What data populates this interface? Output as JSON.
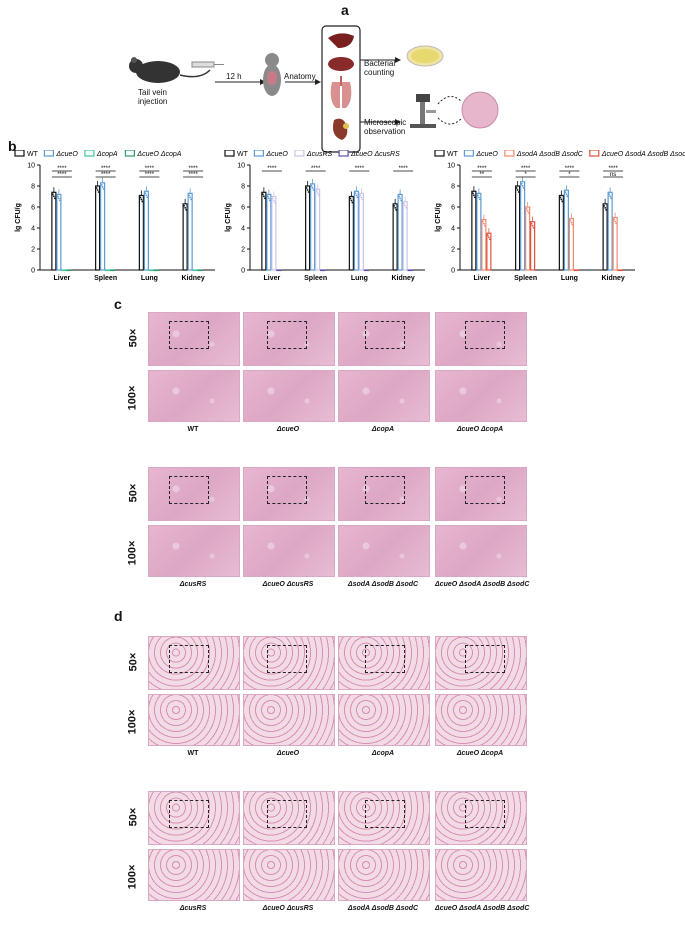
{
  "panel_labels": {
    "a": "a",
    "b": "b",
    "c": "c",
    "d": "d"
  },
  "schematic": {
    "tail_vein": "Tail vein\ninjection",
    "time": "12 h",
    "anatomy": "Anatomy",
    "bacterial": "Bacterial\ncounting",
    "microscopic": "Microscopic\nobservation"
  },
  "chart_data": [
    {
      "type": "bar",
      "ylabel": "lg CFU/g",
      "ylim": [
        0,
        10
      ],
      "yticks": [
        "0",
        "2",
        "4",
        "6",
        "8",
        "10"
      ],
      "categories": [
        "Liver",
        "Spleen",
        "Lung",
        "Kidney"
      ],
      "series": [
        {
          "name": "WT",
          "values": [
            7.4,
            8.0,
            7.1,
            6.3
          ],
          "color": "#111111"
        },
        {
          "name": "ΔcueO",
          "values": [
            7.2,
            8.3,
            7.5,
            7.3
          ],
          "color": "#5b9bd5"
        },
        {
          "name": "ΔcopA",
          "values": [
            0,
            0,
            0,
            0
          ],
          "color": "#3ec6a0"
        },
        {
          "name": "ΔcueO ΔcopA",
          "values": [
            0,
            0,
            0,
            0
          ],
          "color": "#2e9c6a"
        }
      ],
      "significance": [
        [
          "****",
          "****"
        ],
        [
          "****",
          "****"
        ],
        [
          "****",
          "****"
        ],
        [
          "****",
          "****"
        ]
      ]
    },
    {
      "type": "bar",
      "ylabel": "lg CFU/g",
      "ylim": [
        0,
        10
      ],
      "yticks": [
        "0",
        "2",
        "4",
        "6",
        "8",
        "10"
      ],
      "categories": [
        "Liver",
        "Spleen",
        "Lung",
        "Kidney"
      ],
      "series": [
        {
          "name": "WT",
          "values": [
            7.4,
            8.0,
            7.0,
            6.3
          ],
          "color": "#111111"
        },
        {
          "name": "ΔcueO",
          "values": [
            7.2,
            8.2,
            7.5,
            7.2
          ],
          "color": "#5b9bd5"
        },
        {
          "name": "ΔcusRS",
          "values": [
            7.0,
            7.7,
            7.3,
            6.5
          ],
          "color": "#c9c6e6"
        },
        {
          "name": "ΔcueO ΔcusRS",
          "values": [
            0,
            0,
            0,
            0
          ],
          "color": "#5b4fa8"
        }
      ],
      "significance": [
        [
          "****"
        ],
        [
          "****"
        ],
        [
          "****"
        ],
        [
          "****"
        ]
      ]
    },
    {
      "type": "bar",
      "ylabel": "lg CFU/g",
      "ylim": [
        0,
        10
      ],
      "yticks": [
        "0",
        "2",
        "4",
        "6",
        "8",
        "10"
      ],
      "categories": [
        "Liver",
        "Spleen",
        "Lung",
        "Kidney"
      ],
      "series": [
        {
          "name": "WT",
          "values": [
            7.5,
            8.0,
            7.1,
            6.3
          ],
          "color": "#111111"
        },
        {
          "name": "ΔcueO",
          "values": [
            7.3,
            8.4,
            7.6,
            7.4
          ],
          "color": "#5b9bd5"
        },
        {
          "name": "ΔsodA ΔsodB ΔsodC",
          "values": [
            4.8,
            6.0,
            4.9,
            5.0
          ],
          "color": "#f08a6c"
        },
        {
          "name": "ΔcueO ΔsodA ΔsodB ΔsodC",
          "values": [
            3.5,
            4.6,
            0,
            0
          ],
          "color": "#e0503a"
        }
      ],
      "significance": [
        [
          "****",
          "**"
        ],
        [
          "****",
          "*"
        ],
        [
          "****",
          "*"
        ],
        [
          "****",
          "ns"
        ]
      ]
    }
  ],
  "panel_c": {
    "mag50": "50×",
    "mag100": "100×",
    "row1": [
      "WT",
      "ΔcueO",
      "ΔcopA",
      "ΔcueO ΔcopA"
    ],
    "row2": [
      "ΔcusRS",
      "ΔcueO ΔcusRS",
      "ΔsodA ΔsodB ΔsodC",
      "ΔcueO ΔsodA ΔsodB ΔsodC"
    ]
  },
  "panel_d": {
    "mag50": "50×",
    "mag100": "100×",
    "row1": [
      "WT",
      "ΔcueO",
      "ΔcopA",
      "ΔcueO ΔcopA"
    ],
    "row2": [
      "ΔcusRS",
      "ΔcueO ΔcusRS",
      "ΔsodA ΔsodB ΔsodC",
      "ΔcueO ΔsodA ΔsodB ΔsodC"
    ]
  }
}
